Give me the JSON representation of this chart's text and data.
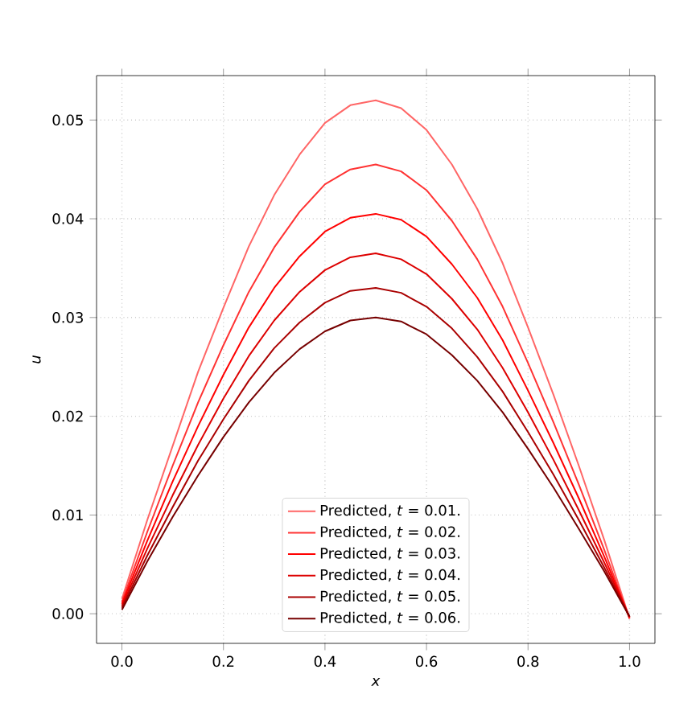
{
  "chart_data": {
    "type": "line",
    "xlabel": "x",
    "ylabel": "u",
    "xlim": [
      -0.05,
      1.05
    ],
    "ylim": [
      -0.003,
      0.0545
    ],
    "xticks": [
      {
        "value": 0,
        "label": "0.0"
      },
      {
        "value": 0.2,
        "label": "0.2"
      },
      {
        "value": 0.4,
        "label": "0.4"
      },
      {
        "value": 0.6,
        "label": "0.6"
      },
      {
        "value": 0.8,
        "label": "0.8"
      },
      {
        "value": 1,
        "label": "1.0"
      }
    ],
    "yticks": [
      {
        "value": 0,
        "label": "0.00"
      },
      {
        "value": 0.01,
        "label": "0.01"
      },
      {
        "value": 0.02,
        "label": "0.02"
      },
      {
        "value": 0.03,
        "label": "0.03"
      },
      {
        "value": 0.04,
        "label": "0.04"
      },
      {
        "value": 0.05,
        "label": "0.05"
      }
    ],
    "grid": true,
    "legend": "bottom",
    "marker": "none",
    "line_style": "solid",
    "x": [
      0,
      0.05,
      0.1,
      0.15,
      0.2,
      0.25,
      0.3,
      0.35,
      0.4,
      0.45,
      0.5,
      0.55,
      0.6,
      0.65,
      0.7,
      0.75,
      0.8,
      0.85,
      0.9,
      0.95,
      1
    ],
    "series": [
      {
        "name": "Predicted, *t* = 0.01.",
        "color": "#ff6666",
        "values": [
          0.0015,
          0.0095,
          0.017,
          0.0245,
          0.031,
          0.0372,
          0.0424,
          0.0465,
          0.0497,
          0.0515,
          0.052,
          0.0512,
          0.049,
          0.0455,
          0.041,
          0.0355,
          0.029,
          0.0222,
          0.015,
          0.0075,
          -0.0005
        ]
      },
      {
        "name": "Predicted, *t* = 0.02.",
        "color": "#ff3333",
        "values": [
          0.0012,
          0.0083,
          0.015,
          0.0214,
          0.0272,
          0.0326,
          0.0371,
          0.0407,
          0.0435,
          0.045,
          0.0455,
          0.0448,
          0.0429,
          0.0398,
          0.0359,
          0.0311,
          0.0254,
          0.0194,
          0.0131,
          0.0065,
          -0.0005
        ]
      },
      {
        "name": "Predicted, *t* = 0.03.",
        "color": "#ff0000",
        "values": [
          0.001,
          0.0074,
          0.0134,
          0.019,
          0.0242,
          0.029,
          0.033,
          0.0362,
          0.0387,
          0.0401,
          0.0405,
          0.0399,
          0.0382,
          0.0354,
          0.032,
          0.0277,
          0.0226,
          0.0173,
          0.0117,
          0.0058,
          -0.0004
        ]
      },
      {
        "name": "Predicted, *t* = 0.04.",
        "color": "#dd0000",
        "values": [
          0.0008,
          0.0066,
          0.012,
          0.0171,
          0.0218,
          0.0261,
          0.0297,
          0.0326,
          0.0348,
          0.0361,
          0.0365,
          0.0359,
          0.0344,
          0.0319,
          0.0288,
          0.0249,
          0.0204,
          0.0156,
          0.0105,
          0.0052,
          -0.0003
        ]
      },
      {
        "name": "Predicted, *t* = 0.05.",
        "color": "#aa0000",
        "values": [
          0.0006,
          0.0059,
          0.0108,
          0.0155,
          0.0197,
          0.0236,
          0.0269,
          0.0295,
          0.0315,
          0.0327,
          0.033,
          0.0325,
          0.0311,
          0.0289,
          0.026,
          0.0225,
          0.0184,
          0.0141,
          0.0095,
          0.0047,
          -0.0003
        ]
      },
      {
        "name": "Predicted, *t* = 0.06.",
        "color": "#770000",
        "values": [
          0.0004,
          0.0053,
          0.0098,
          0.014,
          0.0179,
          0.0214,
          0.0244,
          0.0268,
          0.0286,
          0.0297,
          0.03,
          0.0296,
          0.0283,
          0.0262,
          0.0236,
          0.0204,
          0.0167,
          0.0128,
          0.0086,
          0.0043,
          -0.0003
        ]
      }
    ]
  }
}
